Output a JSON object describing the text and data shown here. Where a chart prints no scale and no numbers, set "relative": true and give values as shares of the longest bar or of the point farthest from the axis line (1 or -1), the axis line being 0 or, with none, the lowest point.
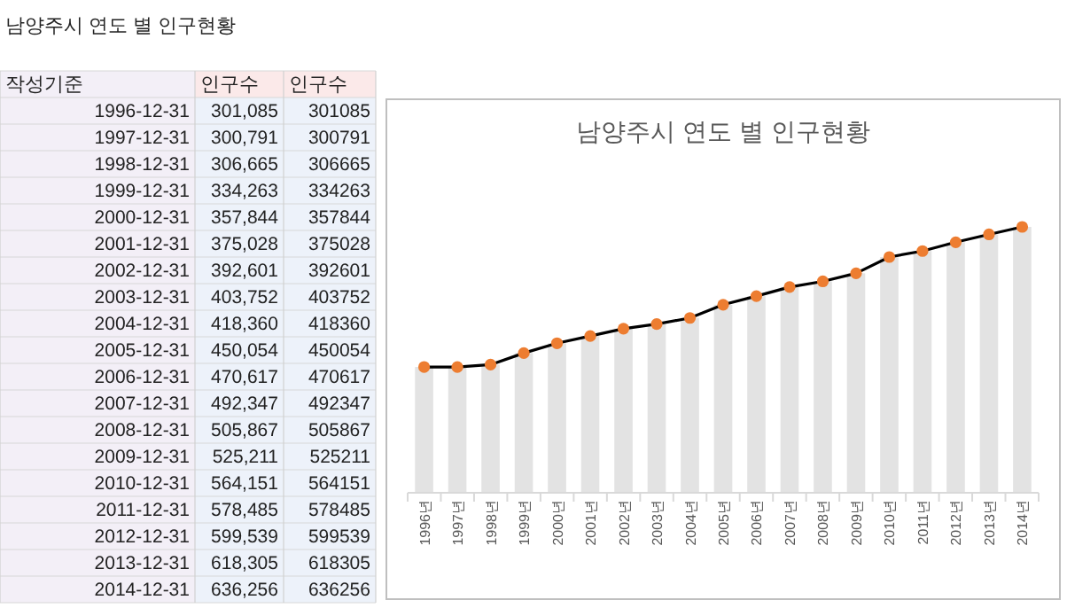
{
  "chart_data": {
    "type": "bar",
    "title": "남양주시 연도 별 인구현황",
    "categories": [
      "1996년",
      "1997년",
      "1998년",
      "1999년",
      "2000년",
      "2001년",
      "2002년",
      "2003년",
      "2004년",
      "2005년",
      "2006년",
      "2007년",
      "2008년",
      "2009년",
      "2010년",
      "2011년",
      "2012년",
      "2013년",
      "2014년"
    ],
    "marker": "circle",
    "relative": true,
    "series": [
      {
        "color": "#e3e3e3",
        "values": [
          0.4732,
          0.4728,
          0.482,
          0.5254,
          0.5624,
          0.5894,
          0.6171,
          0.6346,
          0.6575,
          0.7073,
          0.7397,
          0.7738,
          0.7951,
          0.8255,
          0.8867,
          0.9092,
          0.9423,
          0.9718,
          1
        ]
      },
      {
        "type": "line",
        "color": "#000000",
        "colors": [
          "#ed7d31",
          "#ed7d31",
          "#ed7d31",
          "#ed7d31",
          "#ed7d31",
          "#ed7d31",
          "#ed7d31",
          "#ed7d31",
          "#ed7d31",
          "#ed7d31",
          "#ed7d31",
          "#ed7d31",
          "#ed7d31",
          "#ed7d31",
          "#ed7d31",
          "#ed7d31",
          "#ed7d31",
          "#ed7d31",
          "#ed7d31"
        ],
        "values": [
          0.4732,
          0.4728,
          0.482,
          0.5254,
          0.5624,
          0.5894,
          0.6171,
          0.6346,
          0.6575,
          0.7073,
          0.7397,
          0.7738,
          0.7951,
          0.8255,
          0.8867,
          0.9092,
          0.9423,
          0.9718,
          1
        ]
      }
    ],
    "annotations": [
      "남양주시 연도 별 인구현황",
      "작성기준",
      "인구수",
      "인구수",
      "1996-12-31",
      "1997-12-31",
      "1998-12-31",
      "1999-12-31",
      "2000-12-31",
      "2001-12-31",
      "2002-12-31",
      "2003-12-31",
      "2004-12-31",
      "2005-12-31",
      "2006-12-31",
      "2007-12-31",
      "2008-12-31",
      "2009-12-31",
      "2010-12-31",
      "2011-12-31",
      "2012-12-31",
      "2013-12-31",
      "2014-12-31",
      "301,085",
      "300,791",
      "306,665",
      "334,263",
      "357,844",
      "375,028",
      "392,601",
      "403,752",
      "418,360",
      "450,054",
      "470,617",
      "492,347",
      "505,867",
      "525,211",
      "564,151",
      "578,485",
      "599,539",
      "618,305",
      "636,256",
      "301085",
      "300791",
      "306665",
      "334263",
      "357844",
      "375028",
      "392601",
      "403752",
      "418360",
      "450054",
      "470617",
      "492347",
      "505867",
      "525211",
      "564151",
      "578485",
      "599539",
      "618305",
      "636256"
    ]
  }
}
